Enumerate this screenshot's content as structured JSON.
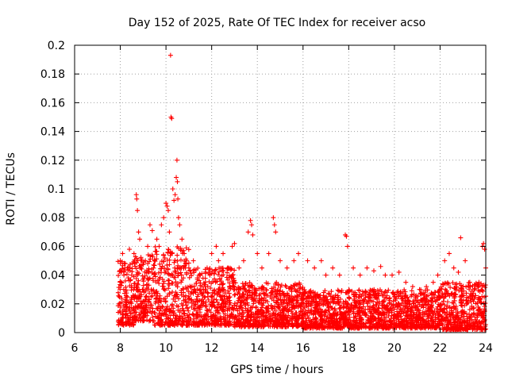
{
  "chart_data": {
    "type": "scatter",
    "title": "Day 152 of 2025, Rate Of TEC Index for receiver acso",
    "xlabel": "GPS time / hours",
    "ylabel": "ROTI / TECUs",
    "xlim": [
      6,
      24
    ],
    "ylim": [
      0,
      0.2
    ],
    "x_ticks": [
      "6",
      "8",
      "10",
      "12",
      "14",
      "16",
      "18",
      "20",
      "22",
      "24"
    ],
    "y_ticks": [
      "0",
      "0.02",
      "0.04",
      "0.06",
      "0.08",
      "0.1",
      "0.12",
      "0.14",
      "0.16",
      "0.18",
      "0.2"
    ],
    "grid": true,
    "marker": "plus",
    "series": [
      {
        "color": "#ff0000",
        "points": [
          [
            7.95,
            0.02
          ],
          [
            8.0,
            0.05
          ],
          [
            8.05,
            0.035
          ],
          [
            8.1,
            0.055
          ],
          [
            8.15,
            0.03
          ],
          [
            8.2,
            0.045
          ],
          [
            8.3,
            0.025
          ],
          [
            8.4,
            0.058
          ],
          [
            8.5,
            0.04
          ],
          [
            8.6,
            0.055
          ],
          [
            8.7,
            0.096
          ],
          [
            8.72,
            0.093
          ],
          [
            8.75,
            0.085
          ],
          [
            8.8,
            0.07
          ],
          [
            8.85,
            0.065
          ],
          [
            8.9,
            0.045
          ],
          [
            9.0,
            0.03
          ],
          [
            9.1,
            0.05
          ],
          [
            9.2,
            0.06
          ],
          [
            9.3,
            0.075
          ],
          [
            9.4,
            0.071
          ],
          [
            9.5,
            0.05
          ],
          [
            9.6,
            0.065
          ],
          [
            9.7,
            0.06
          ],
          [
            9.8,
            0.075
          ],
          [
            9.9,
            0.08
          ],
          [
            10.0,
            0.09
          ],
          [
            10.05,
            0.088
          ],
          [
            10.1,
            0.085
          ],
          [
            10.15,
            0.07
          ],
          [
            10.2,
            0.193
          ],
          [
            10.22,
            0.15
          ],
          [
            10.25,
            0.149
          ],
          [
            10.3,
            0.1
          ],
          [
            10.35,
            0.092
          ],
          [
            10.4,
            0.096
          ],
          [
            10.45,
            0.108
          ],
          [
            10.48,
            0.12
          ],
          [
            10.5,
            0.105
          ],
          [
            10.52,
            0.093
          ],
          [
            10.55,
            0.08
          ],
          [
            10.6,
            0.075
          ],
          [
            10.7,
            0.065
          ],
          [
            10.8,
            0.055
          ],
          [
            10.9,
            0.05
          ],
          [
            11.0,
            0.045
          ],
          [
            11.2,
            0.05
          ],
          [
            11.5,
            0.04
          ],
          [
            11.8,
            0.045
          ],
          [
            12.0,
            0.055
          ],
          [
            12.2,
            0.06
          ],
          [
            12.3,
            0.05
          ],
          [
            12.5,
            0.055
          ],
          [
            12.7,
            0.045
          ],
          [
            12.9,
            0.06
          ],
          [
            13.0,
            0.062
          ],
          [
            13.2,
            0.045
          ],
          [
            13.4,
            0.05
          ],
          [
            13.6,
            0.07
          ],
          [
            13.7,
            0.078
          ],
          [
            13.75,
            0.075
          ],
          [
            13.8,
            0.068
          ],
          [
            14.0,
            0.055
          ],
          [
            14.2,
            0.045
          ],
          [
            14.5,
            0.055
          ],
          [
            14.7,
            0.08
          ],
          [
            14.75,
            0.075
          ],
          [
            14.8,
            0.07
          ],
          [
            15.0,
            0.05
          ],
          [
            15.3,
            0.045
          ],
          [
            15.6,
            0.05
          ],
          [
            15.8,
            0.055
          ],
          [
            16.2,
            0.05
          ],
          [
            16.5,
            0.045
          ],
          [
            16.8,
            0.05
          ],
          [
            17.0,
            0.04
          ],
          [
            17.3,
            0.045
          ],
          [
            17.6,
            0.04
          ],
          [
            17.85,
            0.068
          ],
          [
            17.9,
            0.067
          ],
          [
            17.95,
            0.06
          ],
          [
            18.2,
            0.045
          ],
          [
            18.5,
            0.04
          ],
          [
            18.8,
            0.045
          ],
          [
            19.1,
            0.043
          ],
          [
            19.4,
            0.046
          ],
          [
            19.6,
            0.04
          ],
          [
            19.9,
            0.04
          ],
          [
            20.2,
            0.042
          ],
          [
            20.5,
            0.035
          ],
          [
            20.8,
            0.032
          ],
          [
            21.1,
            0.03
          ],
          [
            21.4,
            0.032
          ],
          [
            21.7,
            0.035
          ],
          [
            21.9,
            0.04
          ],
          [
            22.2,
            0.05
          ],
          [
            22.4,
            0.055
          ],
          [
            22.6,
            0.045
          ],
          [
            22.8,
            0.042
          ],
          [
            22.9,
            0.066
          ],
          [
            23.1,
            0.05
          ],
          [
            23.3,
            0.035
          ],
          [
            23.5,
            0.03
          ],
          [
            23.7,
            0.035
          ],
          [
            23.85,
            0.06
          ],
          [
            23.9,
            0.062
          ],
          [
            23.95,
            0.058
          ],
          [
            24.0,
            0.045
          ]
        ],
        "bands": [
          {
            "from": 7.9,
            "to": 8.6,
            "min": 0.005,
            "max": 0.05
          },
          {
            "from": 8.6,
            "to": 9.5,
            "min": 0.008,
            "max": 0.055
          },
          {
            "from": 9.5,
            "to": 11.0,
            "min": 0.005,
            "max": 0.06
          },
          {
            "from": 11.0,
            "to": 13.0,
            "min": 0.005,
            "max": 0.045
          },
          {
            "from": 13.0,
            "to": 16.0,
            "min": 0.004,
            "max": 0.035
          },
          {
            "from": 16.0,
            "to": 19.0,
            "min": 0.003,
            "max": 0.03
          },
          {
            "from": 19.0,
            "to": 22.0,
            "min": 0.003,
            "max": 0.03
          },
          {
            "from": 22.0,
            "to": 24.0,
            "min": 0.002,
            "max": 0.035
          }
        ]
      }
    ]
  }
}
